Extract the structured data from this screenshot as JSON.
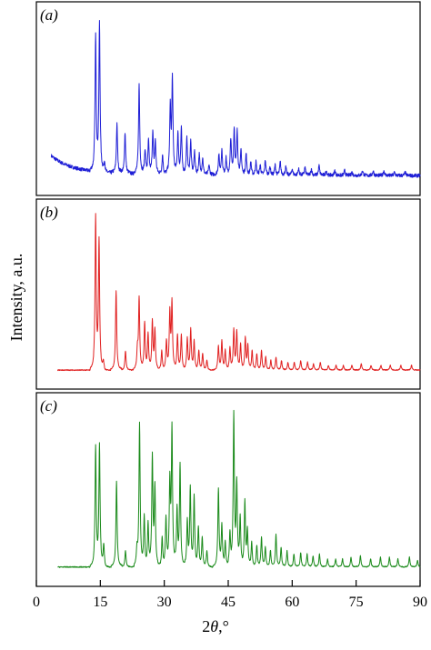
{
  "chart_data": {
    "type": "line",
    "xlabel_prefix": "2",
    "xlabel_theta": "θ",
    "xlabel_suffix": ",°",
    "ylabel": "Intensity, a.u.",
    "xlim": [
      0,
      90
    ],
    "x_ticks": [
      0,
      15,
      30,
      45,
      60,
      75,
      90
    ],
    "x_tick_labels": [
      "0",
      "15",
      "30",
      "45",
      "60",
      "75",
      "90"
    ],
    "grid": false,
    "panels": [
      {
        "label": "(a)",
        "color": "#1f1fd6",
        "noisy": true,
        "baseline_decay": true,
        "peaks": [
          [
            13.9,
            0.82
          ],
          [
            14.8,
            0.9
          ],
          [
            16.0,
            0.06
          ],
          [
            18.9,
            0.3
          ],
          [
            20.8,
            0.25
          ],
          [
            24.1,
            0.55
          ],
          [
            25.5,
            0.15
          ],
          [
            26.3,
            0.2
          ],
          [
            27.3,
            0.25
          ],
          [
            27.9,
            0.2
          ],
          [
            29.6,
            0.12
          ],
          [
            31.4,
            0.4
          ],
          [
            31.9,
            0.58
          ],
          [
            33.2,
            0.25
          ],
          [
            34.0,
            0.28
          ],
          [
            35.3,
            0.22
          ],
          [
            36.2,
            0.2
          ],
          [
            37.1,
            0.14
          ],
          [
            38.2,
            0.12
          ],
          [
            39.0,
            0.1
          ],
          [
            40.5,
            0.06
          ],
          [
            42.8,
            0.12
          ],
          [
            43.5,
            0.15
          ],
          [
            44.5,
            0.1
          ],
          [
            45.6,
            0.22
          ],
          [
            46.4,
            0.28
          ],
          [
            47.1,
            0.26
          ],
          [
            48.0,
            0.15
          ],
          [
            49.2,
            0.13
          ],
          [
            50.3,
            0.08
          ],
          [
            51.5,
            0.08
          ],
          [
            52.5,
            0.06
          ],
          [
            53.7,
            0.09
          ],
          [
            54.8,
            0.05
          ],
          [
            56.0,
            0.06
          ],
          [
            57.2,
            0.08
          ],
          [
            58.5,
            0.05
          ],
          [
            60.0,
            0.04
          ],
          [
            61.5,
            0.04
          ],
          [
            63.0,
            0.05
          ],
          [
            64.5,
            0.04
          ],
          [
            66.3,
            0.06
          ],
          [
            68.0,
            0.03
          ],
          [
            70.0,
            0.03
          ],
          [
            72.3,
            0.03
          ],
          [
            74.0,
            0.02
          ],
          [
            76.5,
            0.03
          ],
          [
            79.0,
            0.03
          ],
          [
            81.5,
            0.03
          ],
          [
            84.0,
            0.02
          ],
          [
            86.5,
            0.02
          ]
        ]
      },
      {
        "label": "(b)",
        "color": "#e02020",
        "noisy": false,
        "baseline_decay": false,
        "peaks": [
          [
            13.9,
            0.95
          ],
          [
            14.7,
            0.8
          ],
          [
            15.7,
            0.05
          ],
          [
            18.7,
            0.5
          ],
          [
            20.9,
            0.12
          ],
          [
            23.7,
            0.12
          ],
          [
            24.1,
            0.45
          ],
          [
            25.4,
            0.3
          ],
          [
            26.2,
            0.22
          ],
          [
            27.2,
            0.3
          ],
          [
            27.8,
            0.25
          ],
          [
            29.4,
            0.12
          ],
          [
            30.5,
            0.18
          ],
          [
            31.3,
            0.35
          ],
          [
            31.8,
            0.42
          ],
          [
            33.1,
            0.22
          ],
          [
            34.0,
            0.22
          ],
          [
            35.4,
            0.2
          ],
          [
            36.2,
            0.25
          ],
          [
            37.0,
            0.18
          ],
          [
            38.1,
            0.12
          ],
          [
            39.0,
            0.1
          ],
          [
            40.0,
            0.06
          ],
          [
            42.7,
            0.15
          ],
          [
            43.5,
            0.18
          ],
          [
            44.3,
            0.12
          ],
          [
            45.4,
            0.14
          ],
          [
            46.3,
            0.25
          ],
          [
            47.0,
            0.24
          ],
          [
            47.9,
            0.16
          ],
          [
            49.0,
            0.2
          ],
          [
            49.6,
            0.15
          ],
          [
            50.6,
            0.12
          ],
          [
            51.7,
            0.1
          ],
          [
            52.8,
            0.12
          ],
          [
            53.8,
            0.08
          ],
          [
            55.0,
            0.06
          ],
          [
            56.2,
            0.08
          ],
          [
            57.5,
            0.06
          ],
          [
            59.0,
            0.05
          ],
          [
            60.5,
            0.05
          ],
          [
            62.0,
            0.06
          ],
          [
            63.6,
            0.05
          ],
          [
            65.0,
            0.04
          ],
          [
            66.6,
            0.05
          ],
          [
            68.5,
            0.03
          ],
          [
            70.3,
            0.03
          ],
          [
            72.0,
            0.03
          ],
          [
            74.0,
            0.03
          ],
          [
            76.2,
            0.04
          ],
          [
            78.5,
            0.03
          ],
          [
            80.8,
            0.03
          ],
          [
            83.0,
            0.03
          ],
          [
            85.5,
            0.03
          ],
          [
            88.0,
            0.03
          ]
        ]
      },
      {
        "label": "(c)",
        "color": "#1a8a1a",
        "noisy": false,
        "baseline_decay": false,
        "peaks": [
          [
            13.9,
            0.73
          ],
          [
            14.8,
            0.74
          ],
          [
            15.8,
            0.13
          ],
          [
            18.8,
            0.53
          ],
          [
            20.9,
            0.1
          ],
          [
            23.6,
            0.1
          ],
          [
            24.2,
            0.88
          ],
          [
            25.3,
            0.3
          ],
          [
            26.2,
            0.26
          ],
          [
            27.2,
            0.67
          ],
          [
            27.8,
            0.48
          ],
          [
            29.5,
            0.18
          ],
          [
            30.4,
            0.3
          ],
          [
            31.3,
            0.5
          ],
          [
            31.8,
            0.84
          ],
          [
            33.0,
            0.34
          ],
          [
            33.7,
            0.63
          ],
          [
            35.4,
            0.28
          ],
          [
            36.1,
            0.48
          ],
          [
            37.0,
            0.43
          ],
          [
            38.0,
            0.24
          ],
          [
            38.9,
            0.18
          ],
          [
            40.0,
            0.1
          ],
          [
            42.7,
            0.48
          ],
          [
            43.5,
            0.25
          ],
          [
            44.3,
            0.15
          ],
          [
            45.4,
            0.2
          ],
          [
            46.3,
            0.93
          ],
          [
            47.0,
            0.5
          ],
          [
            47.8,
            0.3
          ],
          [
            48.9,
            0.4
          ],
          [
            49.5,
            0.22
          ],
          [
            50.5,
            0.15
          ],
          [
            51.7,
            0.13
          ],
          [
            52.8,
            0.18
          ],
          [
            53.7,
            0.12
          ],
          [
            54.9,
            0.1
          ],
          [
            56.2,
            0.2
          ],
          [
            57.4,
            0.12
          ],
          [
            58.8,
            0.1
          ],
          [
            60.4,
            0.08
          ],
          [
            62.0,
            0.09
          ],
          [
            63.5,
            0.08
          ],
          [
            64.9,
            0.07
          ],
          [
            66.4,
            0.08
          ],
          [
            68.3,
            0.05
          ],
          [
            70.2,
            0.05
          ],
          [
            71.8,
            0.05
          ],
          [
            73.8,
            0.06
          ],
          [
            76.0,
            0.07
          ],
          [
            78.4,
            0.05
          ],
          [
            80.7,
            0.06
          ],
          [
            82.8,
            0.06
          ],
          [
            84.8,
            0.05
          ],
          [
            87.5,
            0.06
          ],
          [
            89.4,
            0.04
          ]
        ]
      }
    ]
  }
}
